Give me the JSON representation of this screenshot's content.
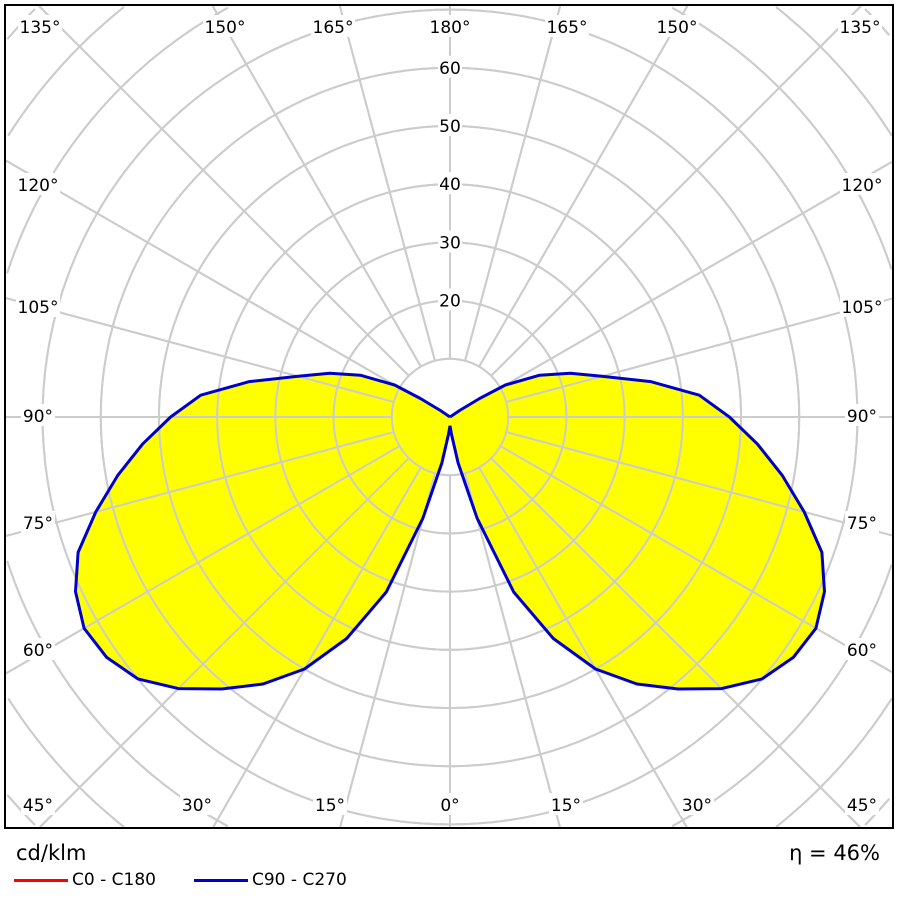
{
  "chart_data": {
    "type": "polar",
    "unit_label": "cd/klm",
    "efficiency_label": "η = 46%",
    "radial_ticks": [
      20,
      30,
      40,
      50,
      60
    ],
    "radial_rings": [
      10,
      20,
      30,
      40,
      50,
      60,
      70,
      80,
      90,
      100,
      110
    ],
    "angle_step_deg": 15,
    "angle_labels": {
      "top": [
        "135°",
        "150°",
        "165°",
        "180°",
        "165°",
        "150°",
        "135°"
      ],
      "left": [
        "120°",
        "105°",
        "90°",
        "75°",
        "60°"
      ],
      "right": [
        "120°",
        "105°",
        "90°",
        "75°",
        "60°"
      ],
      "bottom": [
        "45°",
        "30°",
        "15°",
        "0°",
        "15°",
        "30°",
        "45°"
      ]
    },
    "legend": [
      {
        "name": "C0 - C180",
        "color": "#ff0000"
      },
      {
        "name": "C90 - C270",
        "color": "#0000cc"
      }
    ],
    "series": [
      {
        "name": "C90 - C270",
        "color": "#0000cc",
        "fill": "#ffff00",
        "symmetric": true,
        "angles": [
          0,
          5,
          10,
          15,
          20,
          25,
          30,
          35,
          40,
          45,
          50,
          55,
          60,
          65,
          70,
          75,
          80,
          85,
          90,
          95,
          100,
          105,
          110,
          115,
          120,
          122,
          124,
          126,
          180
        ],
        "values": [
          1.5,
          3,
          8,
          18,
          32,
          42,
          50,
          56,
          61,
          66,
          70,
          72,
          72.6,
          71,
          68,
          63,
          58,
          53,
          48,
          43,
          35,
          27,
          22,
          17,
          11,
          6,
          2,
          0,
          0
        ]
      }
    ]
  }
}
